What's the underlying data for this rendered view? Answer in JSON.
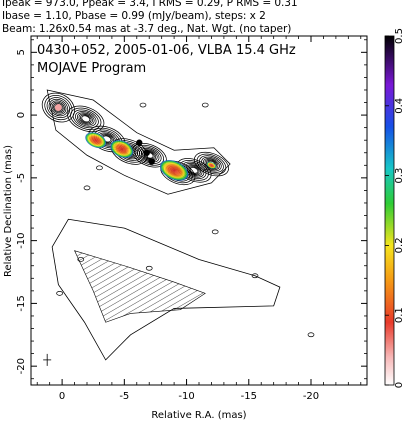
{
  "header": {
    "line1": "Ipeak = 973.0, Ppeak = 3.4, I RMS = 0.29, P RMS = 0.31",
    "line2": "Ibase = 1.10, Pbase = 0.99 (mJy/beam), steps: x 2",
    "line3": "Beam: 1.26x0.54 mas at -3.7 deg., Nat. Wgt. (no taper)"
  },
  "chart_data": {
    "type": "contour",
    "title": "0430+052, 2005-01-06, VLBA 15.4 GHz",
    "subtitle": "MOJAVE Program",
    "xlabel": "Relative R.A. (mas)",
    "ylabel": "Relative Declination (mas)",
    "xlim": [
      2.5,
      -24.5
    ],
    "ylim": [
      -21.5,
      6.3
    ],
    "x_ticks": [
      0,
      -5,
      -10,
      -15,
      -20
    ],
    "y_ticks": [
      5,
      0,
      -5,
      -10,
      -15,
      -20
    ],
    "colorbar": {
      "min": 0,
      "max": 0.5,
      "ticks": [
        0,
        0.1,
        0.2,
        0.3,
        0.4,
        0.5
      ],
      "colors": [
        "#ffffff",
        "#f7a7a7",
        "#e83a2a",
        "#f59a15",
        "#f5e51e",
        "#2ecc35",
        "#17c7c7",
        "#1650e6",
        "#7a18d6",
        "#000000"
      ]
    },
    "upper_panel_components": [
      {
        "x": 0.3,
        "y": 0.6
      },
      {
        "x": -1.9,
        "y": -0.3
      },
      {
        "x": -3.6,
        "y": -1.9
      },
      {
        "x": -5.4,
        "y": -2.9
      },
      {
        "x": -7.0,
        "y": -3.2
      },
      {
        "x": -9.3,
        "y": -4.6
      },
      {
        "x": -10.6,
        "y": -4.4
      },
      {
        "x": -12.0,
        "y": -3.9
      }
    ],
    "lower_panel_envelope": [
      [
        -0.5,
        -8.3
      ],
      [
        -5.0,
        -9.0
      ],
      [
        -11.0,
        -11.5
      ],
      [
        -15.5,
        -12.8
      ],
      [
        -17.5,
        -13.7
      ],
      [
        -17.0,
        -15.2
      ],
      [
        -9.0,
        -15.4
      ],
      [
        -5.5,
        -17.5
      ],
      [
        -3.5,
        -19.5
      ],
      [
        -1.8,
        -16.5
      ],
      [
        0.3,
        -13.5
      ],
      [
        0.8,
        -10.5
      ]
    ]
  }
}
